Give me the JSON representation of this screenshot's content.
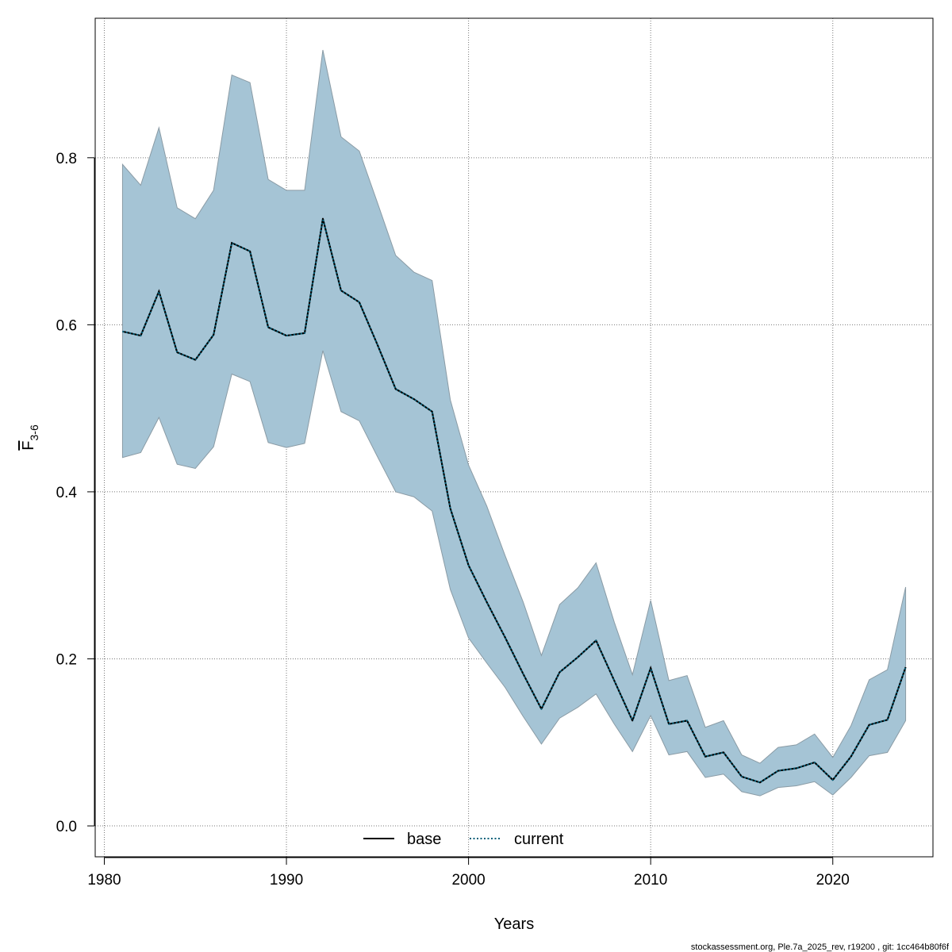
{
  "chart_data": {
    "type": "area",
    "xlabel": "Years",
    "ylabel": {
      "base": "F",
      "subscript": "3-6"
    },
    "xlim": [
      1979.5,
      2025.5
    ],
    "ylim": [
      -0.037,
      0.967
    ],
    "xticks": [
      1980,
      1990,
      2000,
      2010,
      2020
    ],
    "yticks": [
      0.0,
      0.2,
      0.4,
      0.6,
      0.8
    ],
    "ytick_labels": [
      "0.0",
      "0.2",
      "0.4",
      "0.6",
      "0.8"
    ],
    "grid": true,
    "legend_position": "bottom-center",
    "colors": {
      "band": "#a5c4d5",
      "band_edge": "#8a9ba5",
      "base": "#000000",
      "current": "#00607a"
    },
    "x": [
      1981,
      1982,
      1983,
      1984,
      1985,
      1986,
      1987,
      1988,
      1989,
      1990,
      1991,
      1992,
      1993,
      1994,
      1995,
      1996,
      1997,
      1998,
      1999,
      2000,
      2001,
      2002,
      2003,
      2004,
      2005,
      2006,
      2007,
      2008,
      2009,
      2010,
      2011,
      2012,
      2013,
      2014,
      2015,
      2016,
      2017,
      2018,
      2019,
      2020,
      2021,
      2022,
      2023,
      2024
    ],
    "series": [
      {
        "name": "base",
        "line_style": "solid",
        "values": [
          0.592,
          0.587,
          0.64,
          0.567,
          0.558,
          0.588,
          0.698,
          0.688,
          0.597,
          0.587,
          0.59,
          0.727,
          0.641,
          0.627,
          0.576,
          0.523,
          0.511,
          0.496,
          0.38,
          0.312,
          0.268,
          0.226,
          0.182,
          0.14,
          0.184,
          0.202,
          0.222,
          0.174,
          0.126,
          0.189,
          0.122,
          0.126,
          0.083,
          0.088,
          0.059,
          0.052,
          0.066,
          0.069,
          0.076,
          0.055,
          0.083,
          0.121,
          0.127,
          0.19
        ]
      },
      {
        "name": "current",
        "line_style": "dotted",
        "values": [
          0.592,
          0.587,
          0.64,
          0.567,
          0.558,
          0.588,
          0.698,
          0.688,
          0.597,
          0.587,
          0.59,
          0.727,
          0.641,
          0.627,
          0.576,
          0.523,
          0.511,
          0.496,
          0.38,
          0.312,
          0.268,
          0.226,
          0.182,
          0.14,
          0.184,
          0.202,
          0.222,
          0.174,
          0.126,
          0.189,
          0.122,
          0.126,
          0.083,
          0.088,
          0.059,
          0.052,
          0.066,
          0.069,
          0.076,
          0.055,
          0.083,
          0.121,
          0.127,
          0.19
        ]
      }
    ],
    "band": {
      "lower": [
        0.441,
        0.447,
        0.489,
        0.433,
        0.428,
        0.454,
        0.541,
        0.532,
        0.459,
        0.453,
        0.458,
        0.569,
        0.496,
        0.485,
        0.442,
        0.4,
        0.394,
        0.377,
        0.283,
        0.225,
        0.195,
        0.166,
        0.131,
        0.098,
        0.129,
        0.142,
        0.158,
        0.122,
        0.089,
        0.132,
        0.085,
        0.089,
        0.058,
        0.062,
        0.041,
        0.036,
        0.046,
        0.048,
        0.053,
        0.037,
        0.058,
        0.084,
        0.088,
        0.126
      ],
      "upper": [
        0.792,
        0.767,
        0.836,
        0.74,
        0.727,
        0.761,
        0.899,
        0.89,
        0.774,
        0.761,
        0.761,
        0.929,
        0.825,
        0.808,
        0.746,
        0.683,
        0.663,
        0.653,
        0.51,
        0.432,
        0.383,
        0.324,
        0.268,
        0.204,
        0.265,
        0.285,
        0.315,
        0.244,
        0.181,
        0.27,
        0.174,
        0.18,
        0.118,
        0.126,
        0.085,
        0.075,
        0.094,
        0.097,
        0.11,
        0.082,
        0.12,
        0.175,
        0.187,
        0.286
      ]
    }
  },
  "legend": {
    "items": [
      "base",
      "current"
    ]
  },
  "footer": {
    "text": "stockassessment.org, Ple.7a_2025_rev, r19200 , git: 1cc464b80f6f"
  }
}
